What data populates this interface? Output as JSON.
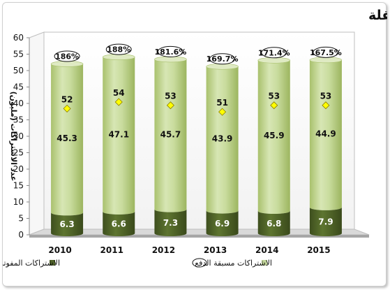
{
  "chart_data": {
    "type": "bar",
    "stacked": true,
    "title": "إجمالي الإشتراكات في خدمات الاتصالات المتنقلة",
    "ylabel": "عدد الاشتراكات (مليون)",
    "xlabel": "",
    "ylim": [
      0,
      60
    ],
    "yticks": [
      0,
      5,
      10,
      15,
      20,
      25,
      30,
      35,
      40,
      45,
      50,
      55,
      60
    ],
    "categories": [
      "2010",
      "2011",
      "2012",
      "2013",
      "2014",
      "2015"
    ],
    "series": [
      {
        "name": "الاشتراكات المفوترة (لاحقة الدفع)",
        "values": [
          6.3,
          6.6,
          7.3,
          6.9,
          6.8,
          7.9
        ],
        "color": "#4f6228"
      },
      {
        "name": "الاشتراكات مسبقة الدفع",
        "values": [
          45.3,
          47.1,
          45.7,
          43.9,
          45.9,
          44.9
        ],
        "color": "#c3d69b"
      }
    ],
    "totals": [
      52,
      54,
      53,
      51,
      53,
      53
    ],
    "penetration": [
      "186%",
      "188%",
      "181.6%",
      "169.7%",
      "171.4%",
      "167.5%"
    ],
    "marker_color": "#ffff00",
    "grid": false,
    "legend_position": "bottom"
  }
}
